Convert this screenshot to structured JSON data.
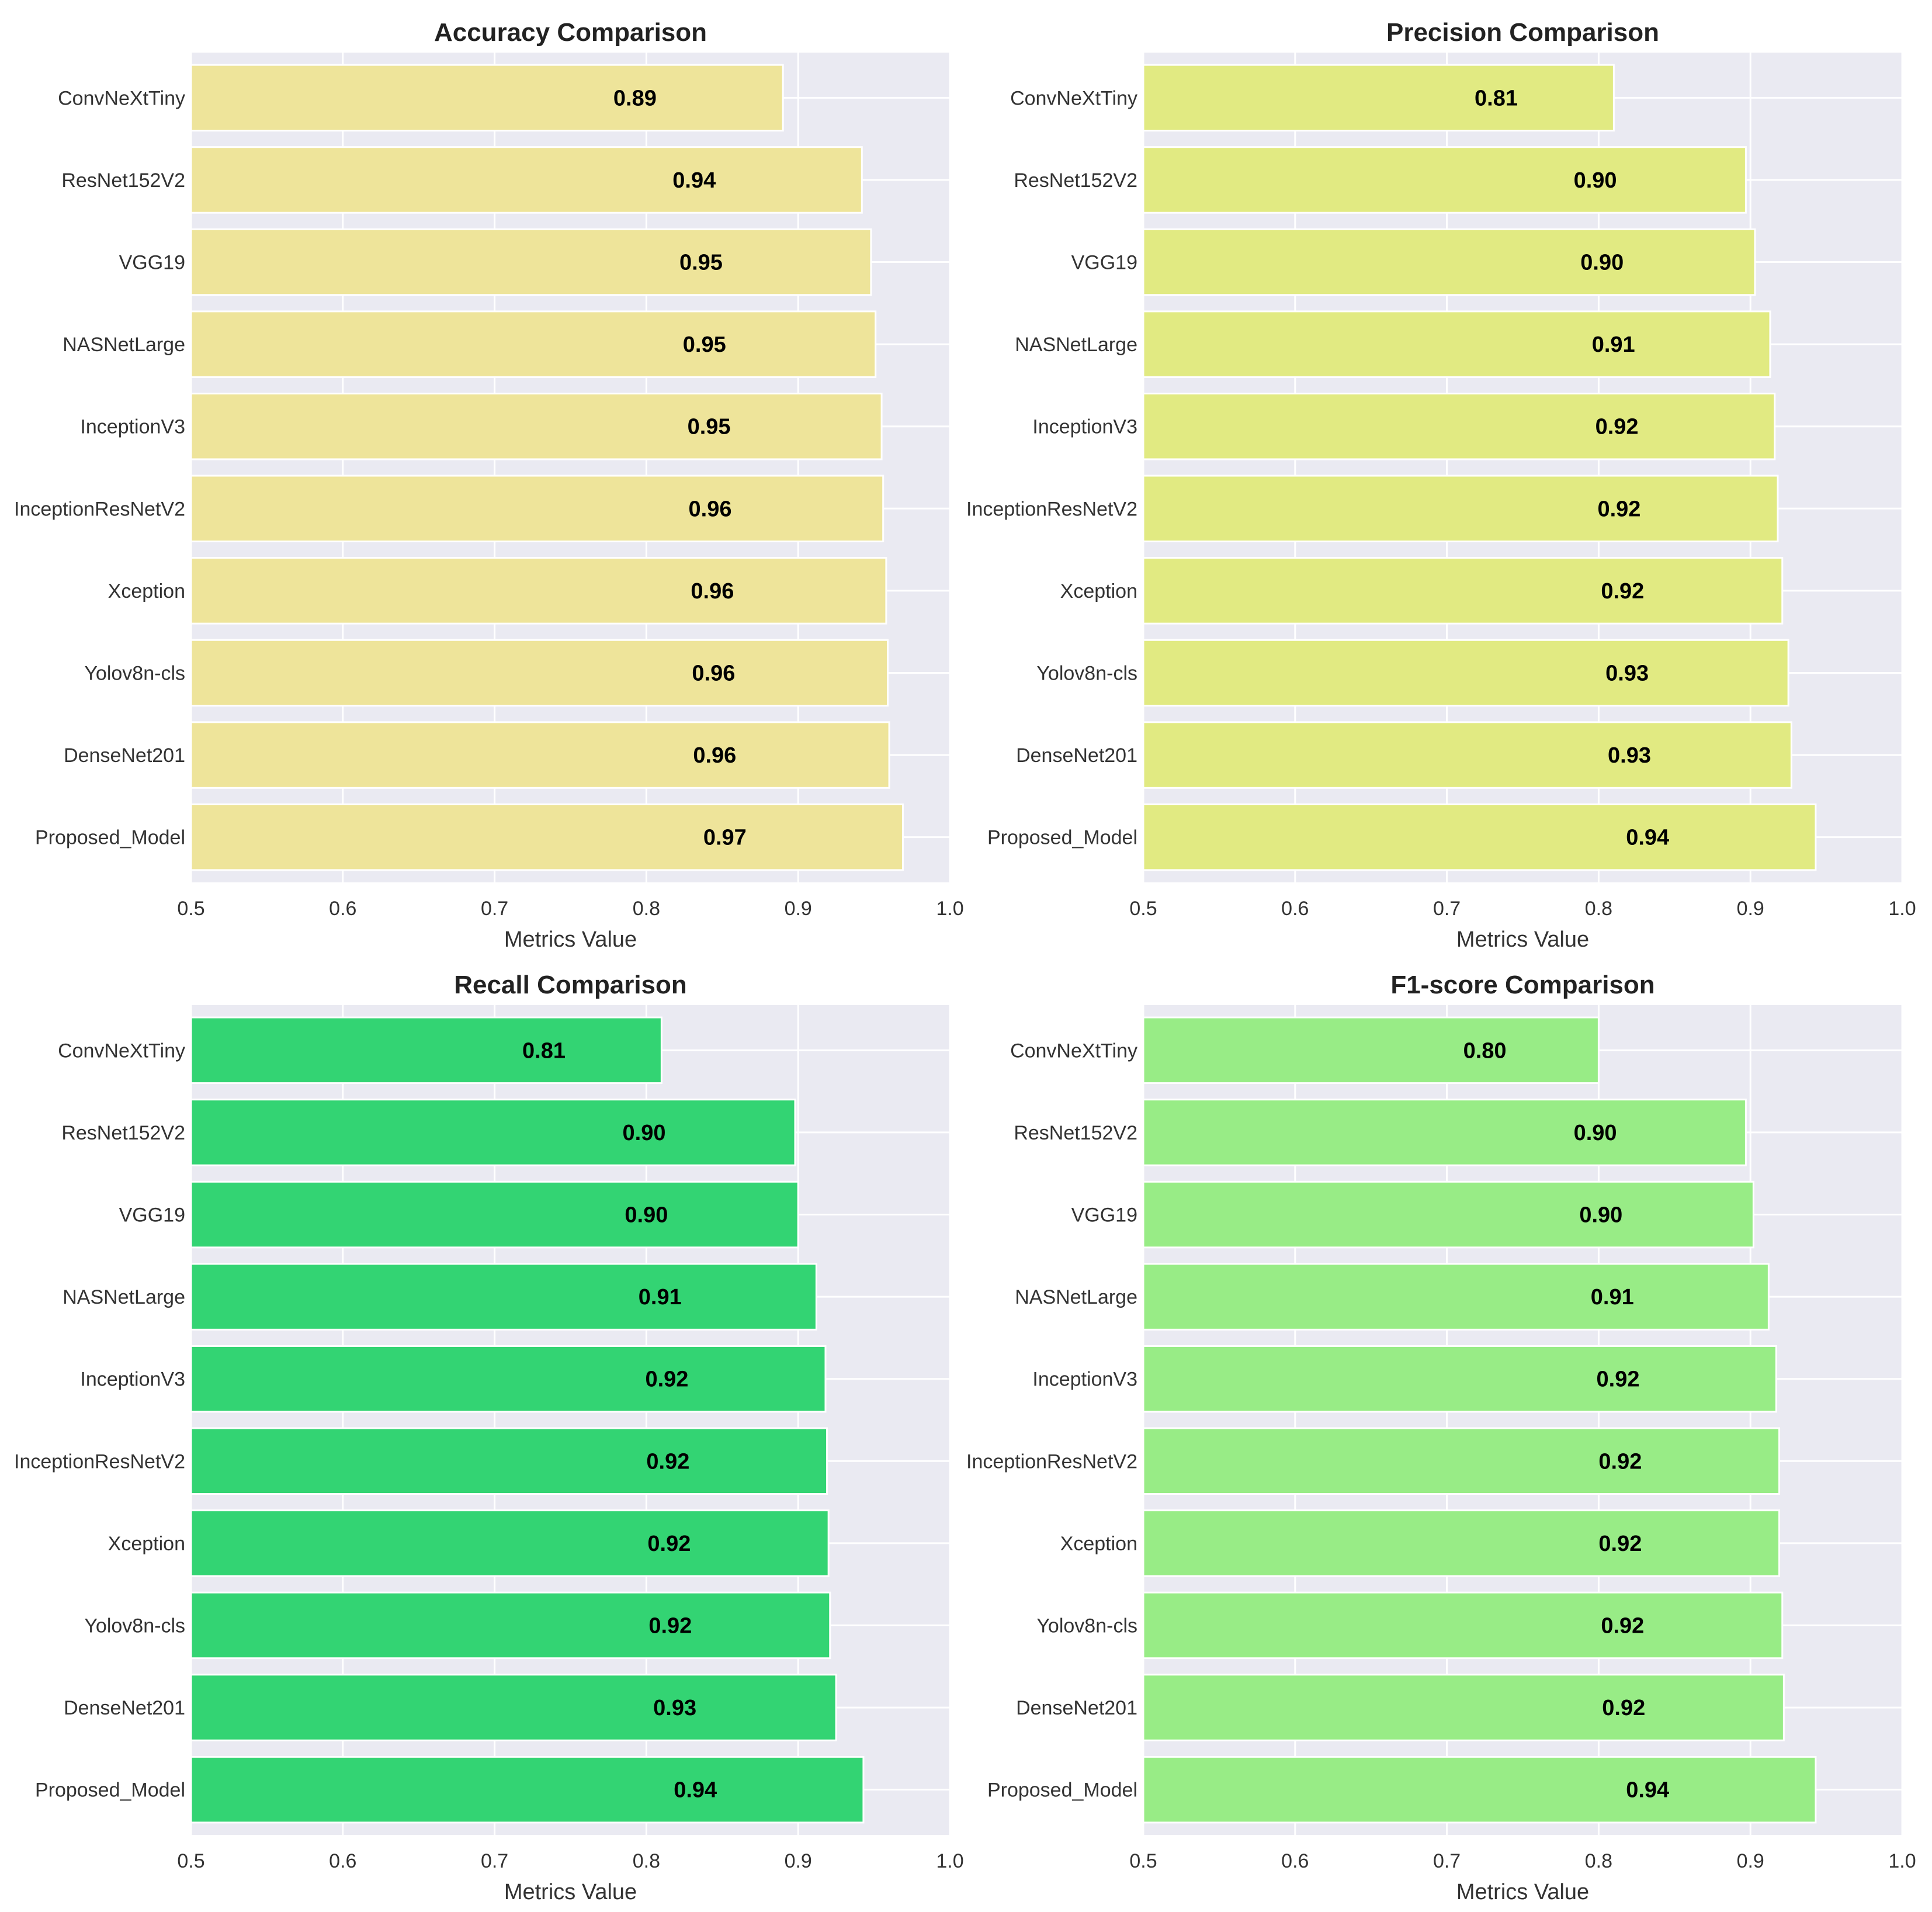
{
  "chart_data": [
    {
      "type": "bar",
      "orientation": "horizontal",
      "title": "Accuracy Comparison",
      "xlabel": "Metrics Value",
      "ylabel": "",
      "xlim": [
        0.5,
        1.0
      ],
      "xticks": [
        "0.5",
        "0.6",
        "0.7",
        "0.8",
        "0.9",
        "1.0"
      ],
      "grid": true,
      "color": "#EEE49A",
      "categories": [
        "ConvNeXtTiny",
        "ResNet152V2",
        "VGG19",
        "NASNetLarge",
        "InceptionV3",
        "InceptionResNetV2",
        "Xception",
        "Yolov8n-cls",
        "DenseNet201",
        "Proposed_Model"
      ],
      "values": [
        0.89,
        0.942,
        0.948,
        0.951,
        0.955,
        0.956,
        0.958,
        0.959,
        0.96,
        0.969
      ],
      "value_labels": [
        "0.89",
        "0.94",
        "0.95",
        "0.95",
        "0.95",
        "0.96",
        "0.96",
        "0.96",
        "0.96",
        "0.97"
      ]
    },
    {
      "type": "bar",
      "orientation": "horizontal",
      "title": "Precision Comparison",
      "xlabel": "Metrics Value",
      "ylabel": "",
      "xlim": [
        0.5,
        1.0
      ],
      "xticks": [
        "0.5",
        "0.6",
        "0.7",
        "0.8",
        "0.9",
        "1.0"
      ],
      "grid": true,
      "color": "#E1EA82",
      "categories": [
        "ConvNeXtTiny",
        "ResNet152V2",
        "VGG19",
        "NASNetLarge",
        "InceptionV3",
        "InceptionResNetV2",
        "Xception",
        "Yolov8n-cls",
        "DenseNet201",
        "Proposed_Model"
      ],
      "values": [
        0.81,
        0.897,
        0.903,
        0.913,
        0.916,
        0.918,
        0.921,
        0.925,
        0.927,
        0.943
      ],
      "value_labels": [
        "0.81",
        "0.90",
        "0.90",
        "0.91",
        "0.92",
        "0.92",
        "0.92",
        "0.93",
        "0.93",
        "0.94"
      ]
    },
    {
      "type": "bar",
      "orientation": "horizontal",
      "title": "Recall Comparison",
      "xlabel": "Metrics Value",
      "ylabel": "",
      "xlim": [
        0.5,
        1.0
      ],
      "xticks": [
        "0.5",
        "0.6",
        "0.7",
        "0.8",
        "0.9",
        "1.0"
      ],
      "grid": true,
      "color": "#33D473",
      "categories": [
        "ConvNeXtTiny",
        "ResNet152V2",
        "VGG19",
        "NASNetLarge",
        "InceptionV3",
        "InceptionResNetV2",
        "Xception",
        "Yolov8n-cls",
        "DenseNet201",
        "Proposed_Model"
      ],
      "values": [
        0.81,
        0.898,
        0.9,
        0.912,
        0.918,
        0.919,
        0.92,
        0.921,
        0.925,
        0.943
      ],
      "value_labels": [
        "0.81",
        "0.90",
        "0.90",
        "0.91",
        "0.92",
        "0.92",
        "0.92",
        "0.92",
        "0.93",
        "0.94"
      ]
    },
    {
      "type": "bar",
      "orientation": "horizontal",
      "title": "F1-score Comparison",
      "xlabel": "Metrics Value",
      "ylabel": "",
      "xlim": [
        0.5,
        1.0
      ],
      "xticks": [
        "0.5",
        "0.6",
        "0.7",
        "0.8",
        "0.9",
        "1.0"
      ],
      "grid": true,
      "color": "#98EC86",
      "categories": [
        "ConvNeXtTiny",
        "ResNet152V2",
        "VGG19",
        "NASNetLarge",
        "InceptionV3",
        "InceptionResNetV2",
        "Xception",
        "Yolov8n-cls",
        "DenseNet201",
        "Proposed_Model"
      ],
      "values": [
        0.8,
        0.897,
        0.902,
        0.912,
        0.917,
        0.919,
        0.919,
        0.921,
        0.922,
        0.943
      ],
      "value_labels": [
        "0.80",
        "0.90",
        "0.90",
        "0.91",
        "0.92",
        "0.92",
        "0.92",
        "0.92",
        "0.92",
        "0.94"
      ]
    }
  ]
}
